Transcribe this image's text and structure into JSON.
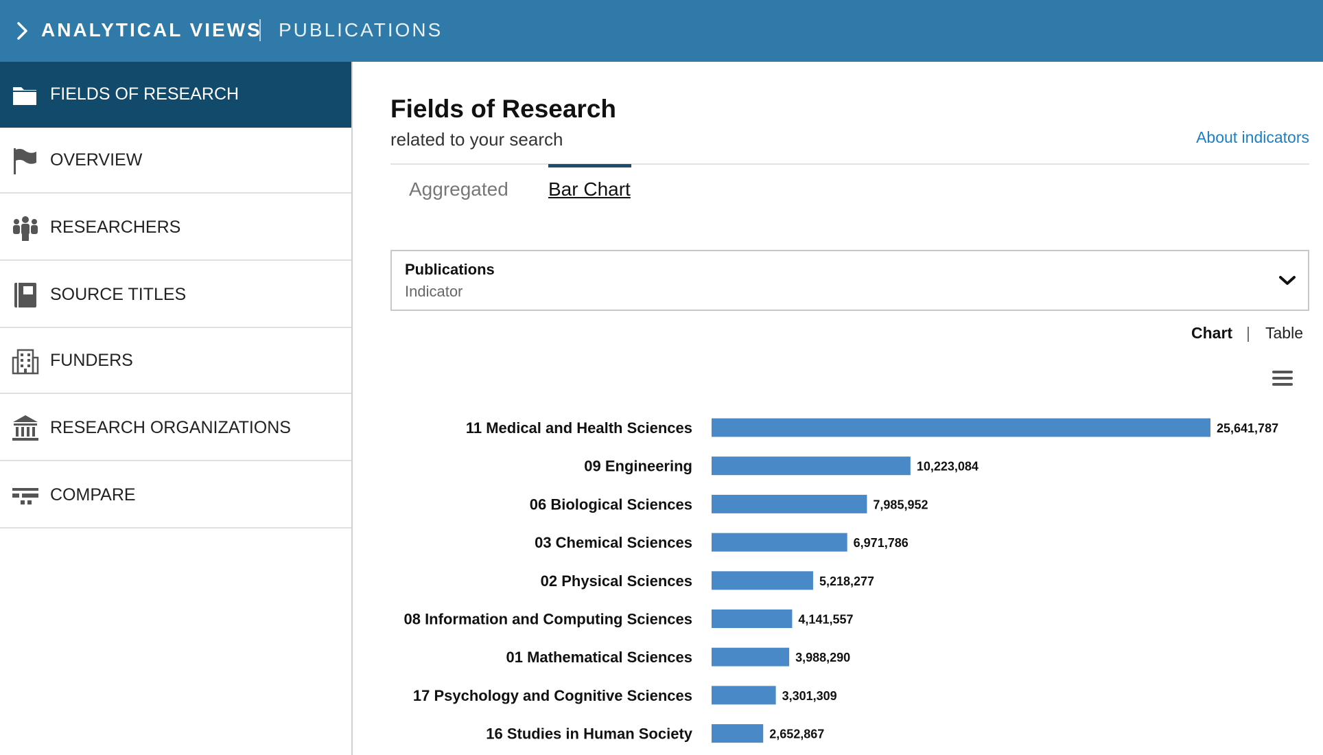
{
  "header": {
    "app_title": "ANALYTICAL VIEWS",
    "section": "PUBLICATIONS"
  },
  "sidebar": {
    "items": [
      {
        "label": "FIELDS OF RESEARCH",
        "icon": "folder-icon",
        "active": true
      },
      {
        "label": "OVERVIEW",
        "icon": "flag-icon",
        "active": false
      },
      {
        "label": "RESEARCHERS",
        "icon": "people-icon",
        "active": false
      },
      {
        "label": "SOURCE TITLES",
        "icon": "book-icon",
        "active": false
      },
      {
        "label": "FUNDERS",
        "icon": "building-icon",
        "active": false
      },
      {
        "label": "RESEARCH ORGANIZATIONS",
        "icon": "institution-icon",
        "active": false
      },
      {
        "label": "COMPARE",
        "icon": "compare-icon",
        "active": false
      }
    ]
  },
  "main": {
    "title": "Fields of Research",
    "subtitle": "related to your search",
    "about_link": "About indicators",
    "tabs": [
      {
        "label": "Aggregated",
        "active": false
      },
      {
        "label": "Bar Chart",
        "active": true
      }
    ],
    "indicator_select": {
      "value": "Publications",
      "caption": "Indicator"
    },
    "view_toggle": {
      "chart": "Chart",
      "separator": "|",
      "table": "Table",
      "active": "Chart"
    }
  },
  "colors": {
    "topbar": "#2f7aa8",
    "sidebar_active": "#114a6b",
    "bar": "#4a89c8",
    "link": "#1f7ec0"
  },
  "chart_data": {
    "type": "bar",
    "orientation": "horizontal",
    "categories": [
      "11 Medical and Health Sciences",
      "09 Engineering",
      "06 Biological Sciences",
      "03 Chemical Sciences",
      "02 Physical Sciences",
      "08 Information and Computing Sciences",
      "01 Mathematical Sciences",
      "17 Psychology and Cognitive Sciences",
      "16 Studies in Human Society"
    ],
    "values": [
      25641787,
      10223084,
      7985952,
      6971786,
      5218277,
      4141557,
      3988290,
      3301309,
      2652867
    ],
    "value_labels": [
      "25,641,787",
      "10,223,084",
      "7,985,952",
      "6,971,786",
      "5,218,277",
      "4,141,557",
      "3,988,290",
      "3,301,309",
      "2,652,867"
    ],
    "xlim": [
      0,
      25641787
    ],
    "grid": false,
    "legend": "none"
  }
}
